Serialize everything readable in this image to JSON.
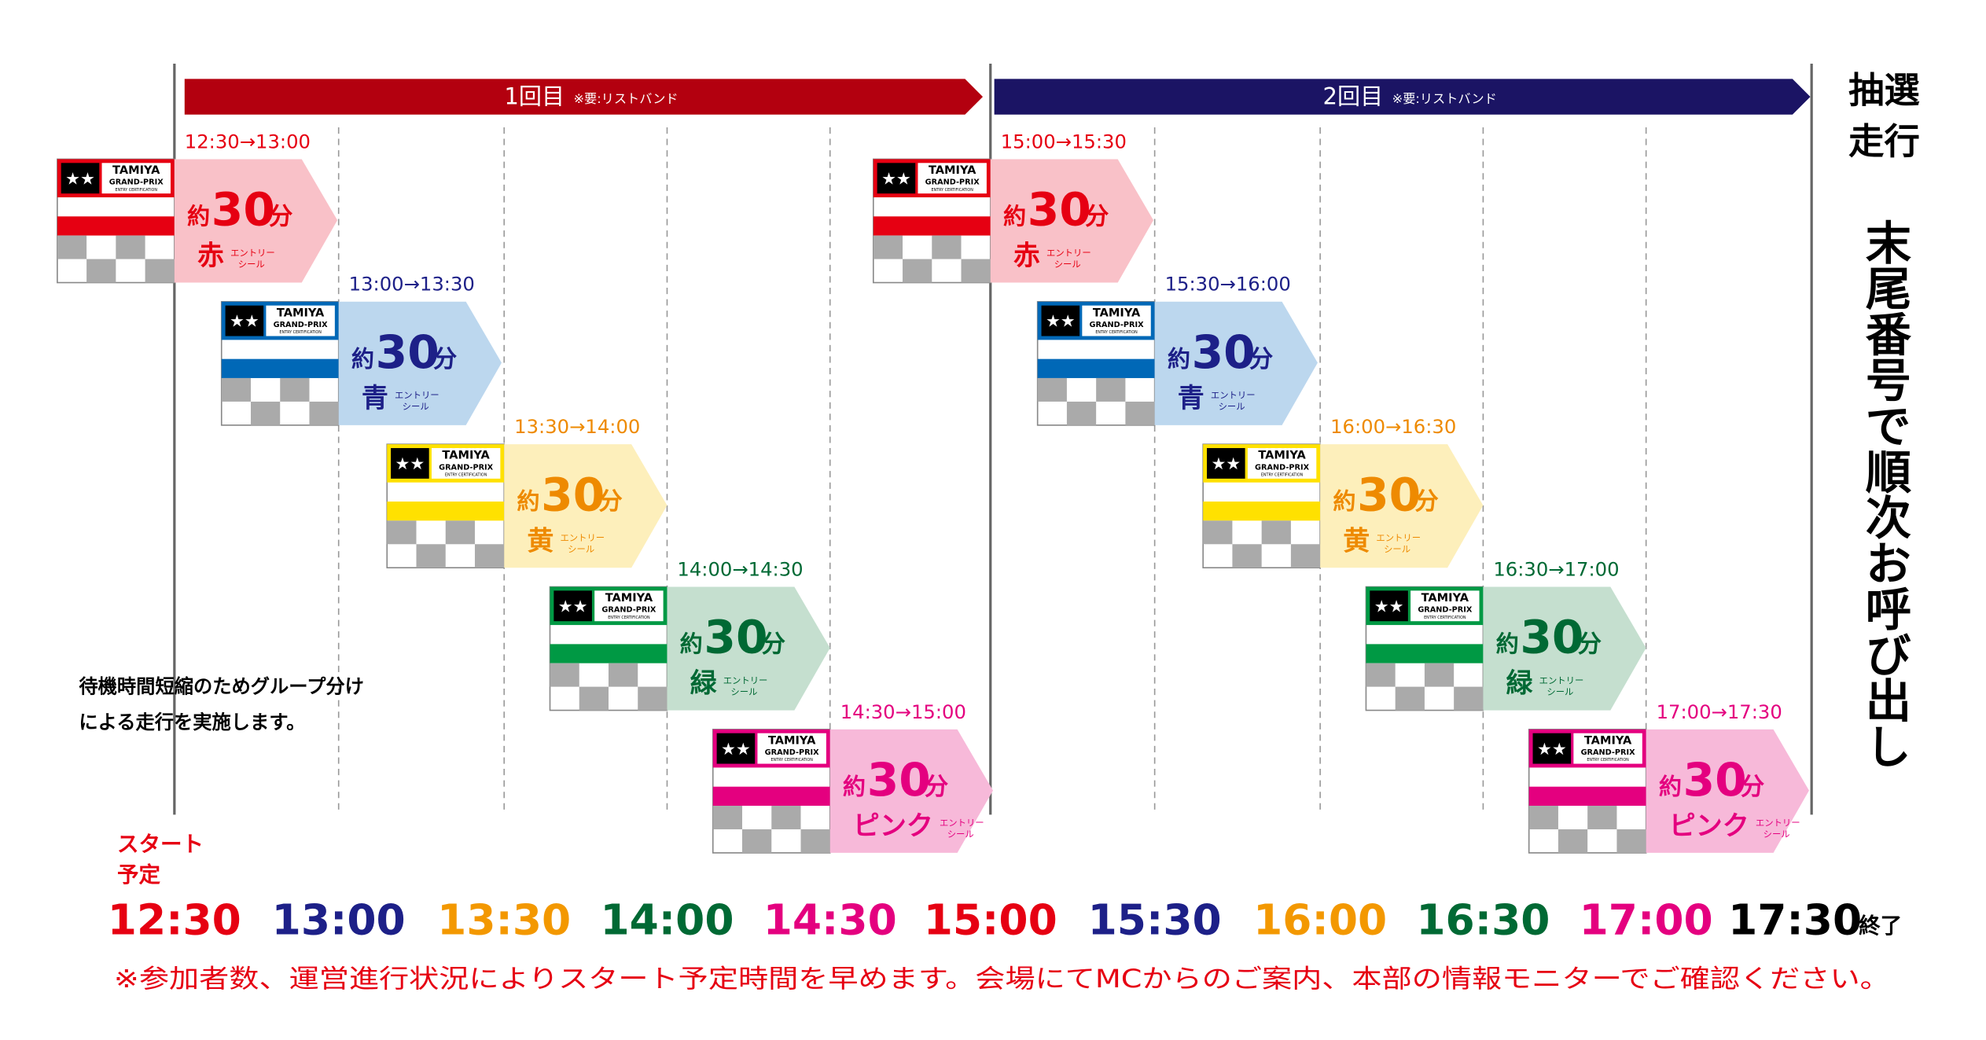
{
  "rounds": [
    {
      "label": "1回目",
      "note": "※要:リストバンド",
      "color": "#b3000f",
      "slots": [
        "12:30→13:00",
        "13:00→13:30",
        "13:30→14:00",
        "14:00→14:30",
        "14:30→15:00"
      ]
    },
    {
      "label": "2回目",
      "note": "※要:リストバンド",
      "color": "#1b1464",
      "slots": [
        "15:00→15:30",
        "15:30→16:00",
        "16:00→16:30",
        "16:30→17:00",
        "17:00→17:30"
      ]
    }
  ],
  "groups": [
    {
      "name": "赤",
      "color": "#e60012",
      "card": "#e60012",
      "pale": "#f9c1c8"
    },
    {
      "name": "青",
      "color": "#1d2088",
      "card": "#0068b7",
      "pale": "#bcd7ee"
    },
    {
      "name": "黄",
      "color": "#ee8a00",
      "card": "#ffe100",
      "pale": "#fdefbb"
    },
    {
      "name": "緑",
      "color": "#006934",
      "card": "#009944",
      "pale": "#c5dfcf"
    },
    {
      "name": "ピンク",
      "color": "#e4007f",
      "card": "#e4007f",
      "pale": "#f7b9d9"
    }
  ],
  "duration": {
    "prefix": "約",
    "value": "30",
    "unit": "分"
  },
  "sticker": [
    "エントリー",
    "シール"
  ],
  "card_text": {
    "brand": "TAMIYA",
    "event": "GRAND-PRIX",
    "sub": "ENTRY CERTIFICATION"
  },
  "side": {
    "title": [
      "抽選",
      "走行"
    ],
    "body": "末尾番号で順次お呼び出し"
  },
  "note": [
    "待機時間短縮のためグループ分け",
    "による走行を実施します。"
  ],
  "start_label": [
    "スタート",
    "予定"
  ],
  "timeline": [
    {
      "label": "12:30",
      "color": "#e60012"
    },
    {
      "label": "13:00",
      "color": "#1d2088"
    },
    {
      "label": "13:30",
      "color": "#f39800"
    },
    {
      "label": "14:00",
      "color": "#006934"
    },
    {
      "label": "14:30",
      "color": "#e4007f"
    },
    {
      "label": "15:00",
      "color": "#e60012"
    },
    {
      "label": "15:30",
      "color": "#1d2088"
    },
    {
      "label": "16:00",
      "color": "#f39800"
    },
    {
      "label": "16:30",
      "color": "#006934"
    },
    {
      "label": "17:00",
      "color": "#e4007f"
    },
    {
      "label": "17:30",
      "color": "#000000"
    }
  ],
  "end_label": "終了",
  "footnote": "※参加者数、運営進行状況によりスタート予定時間を早めます。会場にてMCからのご案内、本部の情報モニターでご確認ください。"
}
